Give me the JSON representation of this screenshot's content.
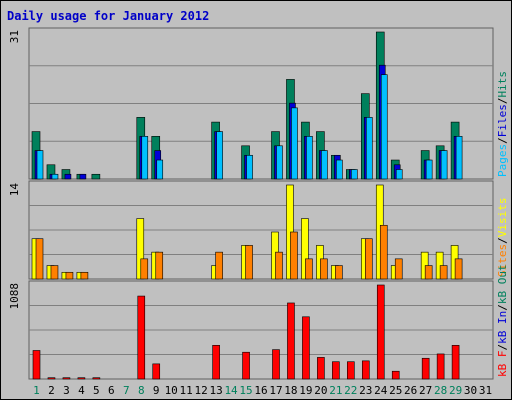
{
  "chart_data": {
    "type": "bar",
    "title": "Daily usage for January 2012",
    "days": [
      "1",
      "2",
      "3",
      "4",
      "5",
      "6",
      "7",
      "8",
      "9",
      "10",
      "11",
      "12",
      "13",
      "14",
      "15",
      "16",
      "17",
      "18",
      "19",
      "20",
      "21",
      "22",
      "23",
      "24",
      "25",
      "26",
      "27",
      "28",
      "29",
      "30",
      "31"
    ],
    "weekend_days": [
      "1",
      "7",
      "8",
      "14",
      "15",
      "21",
      "22",
      "28",
      "29"
    ],
    "colors": {
      "hits": "#00805c",
      "files": "#0000d8",
      "pages": "#00c0ff",
      "visits": "#ffff00",
      "sites": "#ff8000",
      "kb_in": "#0000d8",
      "kb_out": "#ffff00",
      "kb_f": "#ff0000",
      "title": "#0000c8",
      "weekend": "#00805c",
      "weekday": "#000000"
    },
    "panels": [
      {
        "id": "hits-files-pages",
        "ymax_label": "31",
        "ymax": 31,
        "legend": [
          {
            "text": "Pages",
            "color": "#00c0ff"
          },
          {
            "text": "/",
            "color": "#000000"
          },
          {
            "text": "Files",
            "color": "#0000d8"
          },
          {
            "text": "/",
            "color": "#000000"
          },
          {
            "text": "Hits",
            "color": "#00805c"
          }
        ],
        "series": [
          {
            "name": "Hits",
            "color": "#00805c",
            "values": [
              10,
              3,
              2,
              1,
              1,
              0,
              0,
              13,
              9,
              0,
              0,
              0,
              12,
              0,
              7,
              0,
              10,
              21,
              12,
              10,
              5,
              2,
              18,
              31,
              4,
              0,
              6,
              7,
              12,
              0,
              0
            ]
          },
          {
            "name": "Files",
            "color": "#0000d8",
            "values": [
              6,
              1,
              1,
              1,
              0,
              0,
              0,
              9,
              6,
              0,
              0,
              0,
              10,
              0,
              5,
              0,
              7,
              16,
              9,
              6,
              5,
              2,
              13,
              24,
              3,
              0,
              4,
              6,
              9,
              0,
              0
            ]
          },
          {
            "name": "Pages",
            "color": "#00c0ff",
            "values": [
              6,
              1,
              0,
              0,
              0,
              0,
              0,
              9,
              4,
              0,
              0,
              0,
              10,
              0,
              5,
              0,
              7,
              15,
              9,
              6,
              4,
              2,
              13,
              22,
              2,
              0,
              4,
              6,
              9,
              0,
              0
            ]
          }
        ]
      },
      {
        "id": "visits-sites",
        "ymax_label": "14",
        "ymax": 14,
        "legend": [
          {
            "text": "Sites",
            "color": "#ff8000"
          },
          {
            "text": "/",
            "color": "#000000"
          },
          {
            "text": "Visits",
            "color": "#ffff00"
          }
        ],
        "series": [
          {
            "name": "Visits",
            "color": "#ffff00",
            "values": [
              6,
              2,
              1,
              1,
              0,
              0,
              0,
              9,
              4,
              0,
              0,
              0,
              2,
              0,
              5,
              0,
              7,
              14,
              9,
              5,
              2,
              0,
              6,
              14,
              2,
              0,
              4,
              4,
              5,
              0,
              0
            ]
          },
          {
            "name": "Sites",
            "color": "#ff8000",
            "values": [
              6,
              2,
              1,
              1,
              0,
              0,
              0,
              3,
              4,
              0,
              0,
              0,
              4,
              0,
              5,
              0,
              4,
              7,
              3,
              3,
              2,
              0,
              6,
              8,
              3,
              0,
              2,
              2,
              3,
              0,
              0
            ]
          }
        ]
      },
      {
        "id": "kb",
        "ymax_label": "1088",
        "ymax": 1088,
        "legend": [
          {
            "text": "kB F",
            "color": "#ff0000"
          },
          {
            "text": "/",
            "color": "#000000"
          },
          {
            "text": "kB In",
            "color": "#0000d8"
          },
          {
            "text": "/",
            "color": "#000000"
          },
          {
            "text": "kB Out",
            "color": "#00805c"
          }
        ],
        "series": [
          {
            "name": "kB F",
            "color": "#ff0000",
            "values": [
              330,
              15,
              15,
              15,
              15,
              0,
              0,
              960,
              175,
              0,
              0,
              0,
              390,
              0,
              310,
              0,
              340,
              880,
              720,
              250,
              200,
              200,
              210,
              1088,
              90,
              0,
              240,
              290,
              390,
              0,
              0
            ]
          }
        ]
      }
    ]
  }
}
